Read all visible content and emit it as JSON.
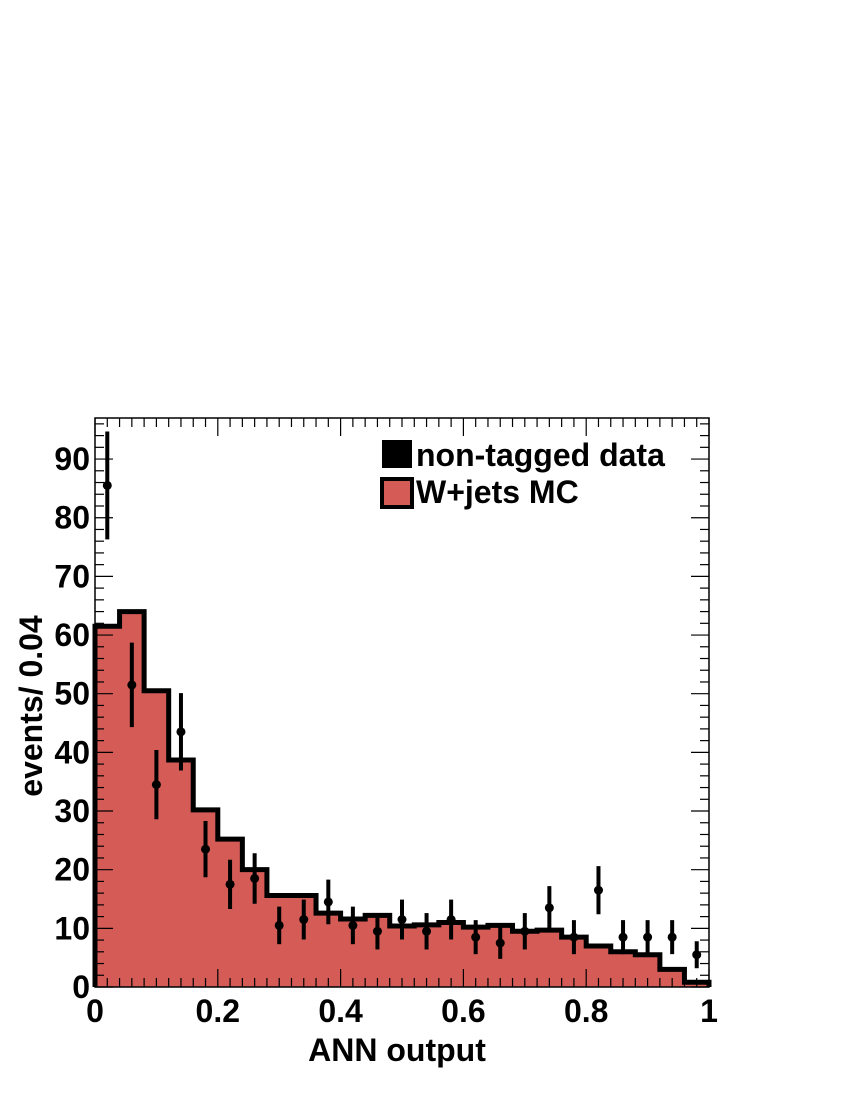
{
  "chart_data": {
    "type": "bar",
    "xlabel": "ANN output",
    "ylabel": "events/ 0.04",
    "xlim": [
      0,
      1
    ],
    "ylim": [
      0,
      97
    ],
    "x_ticks": [
      {
        "value": 0,
        "label": "0"
      },
      {
        "value": 0.2,
        "label": "0.2"
      },
      {
        "value": 0.4,
        "label": "0.4"
      },
      {
        "value": 0.6,
        "label": "0.6"
      },
      {
        "value": 0.8,
        "label": "0.8"
      },
      {
        "value": 1,
        "label": "1"
      }
    ],
    "y_ticks": [
      {
        "value": 0,
        "label": "0"
      },
      {
        "value": 10,
        "label": "10"
      },
      {
        "value": 20,
        "label": "20"
      },
      {
        "value": 30,
        "label": "30"
      },
      {
        "value": 40,
        "label": "40"
      },
      {
        "value": 50,
        "label": "50"
      },
      {
        "value": 60,
        "label": "60"
      },
      {
        "value": 70,
        "label": "70"
      },
      {
        "value": 80,
        "label": "80"
      },
      {
        "value": 90,
        "label": "90"
      }
    ],
    "legend": {
      "placement": "top-right",
      "entries": [
        {
          "label": "non-tagged data",
          "color": "#000000"
        },
        {
          "label": "W+jets MC",
          "color": "#d45b56"
        }
      ]
    },
    "mc_histogram": {
      "name": "W+jets MC",
      "color": "#d45b56",
      "bin_edges": [
        0,
        0.04,
        0.08,
        0.12,
        0.16,
        0.2,
        0.24,
        0.28,
        0.32,
        0.36,
        0.4,
        0.44,
        0.48,
        0.52,
        0.56,
        0.6,
        0.64,
        0.68,
        0.72,
        0.76,
        0.8,
        0.84,
        0.88,
        0.92,
        0.96,
        1.0
      ],
      "values": [
        61.5,
        64.0,
        50.5,
        38.7,
        30.2,
        25.2,
        20.0,
        15.6,
        15.6,
        12.6,
        11.6,
        12.2,
        10.4,
        10.6,
        11.0,
        10.2,
        10.5,
        9.5,
        9.7,
        8.5,
        7.0,
        6.0,
        5.5,
        3.0,
        0.8
      ]
    },
    "data_points": {
      "name": "non-tagged data",
      "color": "#000000",
      "x": [
        0.02,
        0.06,
        0.1,
        0.14,
        0.18,
        0.22,
        0.26,
        0.3,
        0.34,
        0.38,
        0.42,
        0.46,
        0.5,
        0.54,
        0.58,
        0.62,
        0.66,
        0.7,
        0.74,
        0.78,
        0.82,
        0.86,
        0.9,
        0.94,
        0.98
      ],
      "y": [
        85.5,
        51.5,
        34.5,
        43.5,
        23.5,
        17.5,
        18.5,
        10.5,
        11.5,
        14.5,
        10.5,
        9.5,
        11.5,
        9.5,
        11.5,
        8.5,
        7.5,
        9.5,
        13.5,
        8.5,
        16.5,
        8.5,
        8.5,
        8.5,
        5.5
      ],
      "err": [
        9.2,
        7.2,
        5.9,
        6.6,
        4.8,
        4.2,
        4.3,
        3.2,
        3.4,
        3.8,
        3.2,
        3.1,
        3.4,
        3.1,
        3.4,
        2.9,
        2.7,
        3.1,
        3.7,
        2.9,
        4.1,
        2.9,
        2.9,
        2.9,
        2.3
      ]
    }
  }
}
